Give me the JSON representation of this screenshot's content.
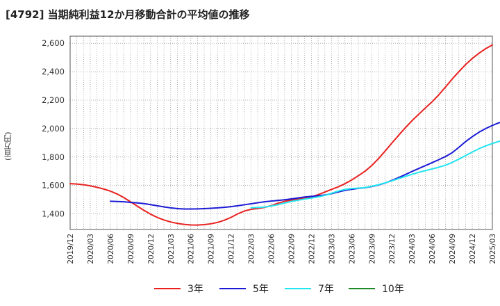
{
  "title": "[4792]  当期純利益12か月移動合計の平均値の推移",
  "y_unit": "(百万円)",
  "chart_data": {
    "type": "line",
    "ylim": [
      1290,
      2650
    ],
    "yticks": [
      1400,
      1600,
      1800,
      2000,
      2200,
      2400,
      2600
    ],
    "ytick_labels": [
      "1,400",
      "1,600",
      "1,800",
      "2,000",
      "2,200",
      "2,400",
      "2,600"
    ],
    "x_labels": [
      "2019/12",
      "2020/03",
      "2020/06",
      "2020/09",
      "2020/12",
      "2021/03",
      "2021/06",
      "2021/09",
      "2021/12",
      "2022/03",
      "2022/06",
      "2022/09",
      "2022/12",
      "2023/03",
      "2023/06",
      "2023/09",
      "2023/12",
      "2024/03",
      "2024/06",
      "2024/09",
      "2024/12",
      "2025/03"
    ],
    "grid": true,
    "legend_position": "bottom",
    "series": [
      {
        "name": "3年",
        "color": "#e8211f",
        "points": [
          [
            0,
            1612
          ],
          [
            1,
            1610
          ],
          [
            2,
            1605
          ],
          [
            3,
            1597
          ],
          [
            4,
            1587
          ],
          [
            5,
            1575
          ],
          [
            6,
            1560
          ],
          [
            7,
            1540
          ],
          [
            8,
            1515
          ],
          [
            9,
            1485
          ],
          [
            10,
            1455
          ],
          [
            11,
            1425
          ],
          [
            12,
            1398
          ],
          [
            13,
            1375
          ],
          [
            14,
            1357
          ],
          [
            15,
            1343
          ],
          [
            16,
            1333
          ],
          [
            17,
            1326
          ],
          [
            18,
            1322
          ],
          [
            19,
            1321
          ],
          [
            20,
            1324
          ],
          [
            21,
            1330
          ],
          [
            22,
            1340
          ],
          [
            23,
            1355
          ],
          [
            24,
            1375
          ],
          [
            25,
            1400
          ],
          [
            26,
            1420
          ],
          [
            27,
            1432
          ],
          [
            28,
            1438
          ],
          [
            29,
            1445
          ],
          [
            30,
            1458
          ],
          [
            31,
            1475
          ],
          [
            32,
            1488
          ],
          [
            33,
            1497
          ],
          [
            34,
            1503
          ],
          [
            35,
            1510
          ],
          [
            36,
            1520
          ],
          [
            37,
            1535
          ],
          [
            38,
            1553
          ],
          [
            39,
            1572
          ],
          [
            40,
            1590
          ],
          [
            41,
            1612
          ],
          [
            42,
            1638
          ],
          [
            43,
            1668
          ],
          [
            44,
            1700
          ],
          [
            45,
            1740
          ],
          [
            46,
            1788
          ],
          [
            47,
            1842
          ],
          [
            48,
            1898
          ],
          [
            49,
            1952
          ],
          [
            50,
            2005
          ],
          [
            51,
            2055
          ],
          [
            52,
            2100
          ],
          [
            53,
            2145
          ],
          [
            54,
            2188
          ],
          [
            55,
            2237
          ],
          [
            56,
            2292
          ],
          [
            57,
            2348
          ],
          [
            58,
            2400
          ],
          [
            59,
            2450
          ],
          [
            60,
            2493
          ],
          [
            61,
            2530
          ],
          [
            62,
            2562
          ],
          [
            63,
            2588
          ]
        ]
      },
      {
        "name": "5年",
        "color": "#1a1ad6",
        "points": [
          [
            6,
            1489
          ],
          [
            7,
            1487
          ],
          [
            8,
            1485
          ],
          [
            9,
            1481
          ],
          [
            10,
            1477
          ],
          [
            11,
            1472
          ],
          [
            12,
            1465
          ],
          [
            13,
            1457
          ],
          [
            14,
            1449
          ],
          [
            15,
            1442
          ],
          [
            16,
            1437
          ],
          [
            17,
            1434
          ],
          [
            18,
            1434
          ],
          [
            19,
            1435
          ],
          [
            20,
            1437
          ],
          [
            21,
            1439
          ],
          [
            22,
            1442
          ],
          [
            23,
            1446
          ],
          [
            24,
            1451
          ],
          [
            25,
            1457
          ],
          [
            26,
            1464
          ],
          [
            27,
            1471
          ],
          [
            28,
            1478
          ],
          [
            29,
            1485
          ],
          [
            30,
            1490
          ],
          [
            31,
            1494
          ],
          [
            32,
            1499
          ],
          [
            33,
            1505
          ],
          [
            34,
            1512
          ],
          [
            35,
            1519
          ],
          [
            36,
            1523
          ],
          [
            37,
            1527
          ],
          [
            38,
            1533
          ],
          [
            39,
            1542
          ],
          [
            40,
            1554
          ],
          [
            41,
            1565
          ],
          [
            42,
            1573
          ],
          [
            43,
            1579
          ],
          [
            44,
            1584
          ],
          [
            45,
            1592
          ],
          [
            46,
            1603
          ],
          [
            47,
            1617
          ],
          [
            48,
            1635
          ],
          [
            49,
            1655
          ],
          [
            50,
            1676
          ],
          [
            51,
            1698
          ],
          [
            52,
            1719
          ],
          [
            53,
            1739
          ],
          [
            54,
            1760
          ],
          [
            55,
            1781
          ],
          [
            56,
            1803
          ],
          [
            57,
            1830
          ],
          [
            58,
            1868
          ],
          [
            59,
            1908
          ],
          [
            60,
            1943
          ],
          [
            61,
            1974
          ],
          [
            62,
            2000
          ],
          [
            63,
            2022
          ],
          [
            64,
            2041
          ],
          [
            65,
            2057
          ],
          [
            66,
            2067
          ]
        ]
      },
      {
        "name": "7年",
        "color": "#21e5f0",
        "points": [
          [
            27,
            1443
          ],
          [
            28,
            1445
          ],
          [
            29,
            1448
          ],
          [
            30,
            1455
          ],
          [
            31,
            1465
          ],
          [
            32,
            1476
          ],
          [
            33,
            1487
          ],
          [
            34,
            1496
          ],
          [
            35,
            1504
          ],
          [
            36,
            1511
          ],
          [
            37,
            1519
          ],
          [
            38,
            1530
          ],
          [
            39,
            1545
          ],
          [
            40,
            1560
          ],
          [
            41,
            1572
          ],
          [
            42,
            1578
          ],
          [
            43,
            1581
          ],
          [
            44,
            1585
          ],
          [
            45,
            1594
          ],
          [
            46,
            1605
          ],
          [
            47,
            1618
          ],
          [
            48,
            1632
          ],
          [
            49,
            1648
          ],
          [
            50,
            1663
          ],
          [
            51,
            1678
          ],
          [
            52,
            1692
          ],
          [
            53,
            1704
          ],
          [
            54,
            1716
          ],
          [
            55,
            1728
          ],
          [
            56,
            1742
          ],
          [
            57,
            1762
          ],
          [
            58,
            1785
          ],
          [
            59,
            1810
          ],
          [
            60,
            1835
          ],
          [
            61,
            1858
          ],
          [
            62,
            1878
          ],
          [
            63,
            1895
          ],
          [
            64,
            1910
          ],
          [
            65,
            1924
          ],
          [
            66,
            1936
          ]
        ]
      },
      {
        "name": "10年",
        "color": "#1f8a2a",
        "points": []
      }
    ]
  }
}
